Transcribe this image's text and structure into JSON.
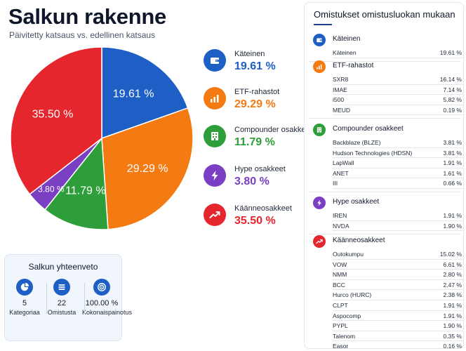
{
  "header": {
    "title": "Salkun rakenne",
    "subtitle": "Päivitetty katsaus vs. edellinen katsaus"
  },
  "chart_data": {
    "type": "pie",
    "title": "Salkun rakenne",
    "slices": [
      {
        "name": "Käteinen",
        "value": 19.61,
        "label": "19.61 %",
        "color": "#1d5fc4"
      },
      {
        "name": "ETF-rahastot",
        "value": 29.29,
        "label": "29.29 %",
        "color": "#f47a12"
      },
      {
        "name": "Compounder osakkeet",
        "value": 11.79,
        "label": "11.79 %",
        "color": "#2e9e3a"
      },
      {
        "name": "Hype osakkeet",
        "value": 3.8,
        "label": "3.80 %",
        "color": "#7a3fc2"
      },
      {
        "name": "Käänneosakkeet",
        "value": 35.5,
        "label": "35.50 %",
        "color": "#e6262d"
      }
    ]
  },
  "legend": [
    {
      "name": "Käteinen",
      "value": "19.61 %",
      "color": "#1d5fc4",
      "value_color": "#1d5fc4",
      "icon": "wallet-icon"
    },
    {
      "name": "ETF-rahastot",
      "value": "29.29 %",
      "color": "#f47a12",
      "value_color": "#f47a12",
      "icon": "bar-chart-icon"
    },
    {
      "name": "Compounder osakkeet",
      "value": "11.79 %",
      "color": "#2e9e3a",
      "value_color": "#2e9e3a",
      "icon": "building-icon"
    },
    {
      "name": "Hype osakkeet",
      "value": "3.80 %",
      "color": "#7a3fc2",
      "value_color": "#7a3fc2",
      "icon": "lightning-icon"
    },
    {
      "name": "Käänneosakkeet",
      "value": "35.50 %",
      "color": "#e6262d",
      "value_color": "#e6262d",
      "icon": "trend-up-icon"
    }
  ],
  "summary": {
    "title": "Salkun yhteenveto",
    "items": [
      {
        "value": "5",
        "label": "Kategoriaa",
        "icon": "pie-icon"
      },
      {
        "value": "22",
        "label": "Omistusta",
        "icon": "list-icon"
      },
      {
        "value": "100.00 %",
        "label": "Kokonaispainotus",
        "icon": "target-icon"
      }
    ]
  },
  "holdings": {
    "title": "Omistukset omistusluokan mukaan",
    "groups": [
      {
        "name": "Käteinen",
        "icon": "wallet-icon",
        "color": "#1d5fc4",
        "items": [
          {
            "name": "Käteinen",
            "value": "19.61 %"
          }
        ]
      },
      {
        "name": "ETF-rahastot",
        "icon": "bar-chart-icon",
        "color": "#f47a12",
        "items": [
          {
            "name": "SXR8",
            "value": "16.14 %"
          },
          {
            "name": "IMAE",
            "value": "7.14 %"
          },
          {
            "name": "i500",
            "value": "5.82 %"
          },
          {
            "name": "MEUD",
            "value": "0.19 %"
          }
        ]
      },
      {
        "name": "Compounder osakkeet",
        "icon": "building-icon",
        "color": "#2e9e3a",
        "items": [
          {
            "name": "Backblaze (BLZE)",
            "value": "3.81 %"
          },
          {
            "name": "Hudson Technologies (HDSN)",
            "value": "3.81 %"
          },
          {
            "name": "LapWall",
            "value": "1.91 %"
          },
          {
            "name": "ANET",
            "value": "1.61 %"
          },
          {
            "name": "III",
            "value": "0.66 %"
          }
        ]
      },
      {
        "name": "Hype osakkeet",
        "icon": "lightning-icon",
        "color": "#7a3fc2",
        "items": [
          {
            "name": "IREN",
            "value": "1.91 %"
          },
          {
            "name": "NVDA",
            "value": "1.90 %"
          }
        ]
      },
      {
        "name": "Käänneosakkeet",
        "icon": "trend-up-icon",
        "color": "#e6262d",
        "items": [
          {
            "name": "Outokumpu",
            "value": "15.02 %"
          },
          {
            "name": "VOW",
            "value": "6.61 %"
          },
          {
            "name": "NMM",
            "value": "2.80 %"
          },
          {
            "name": "BCC",
            "value": "2.47 %"
          },
          {
            "name": "Hurco (HURC)",
            "value": "2.38 %"
          },
          {
            "name": "CLPT",
            "value": "1.91 %"
          },
          {
            "name": "Aspocomp",
            "value": "1.91 %"
          },
          {
            "name": "PYPL",
            "value": "1.90 %"
          },
          {
            "name": "Talenom",
            "value": "0.35 %"
          },
          {
            "name": "Easor",
            "value": "0.16 %"
          }
        ]
      }
    ]
  }
}
